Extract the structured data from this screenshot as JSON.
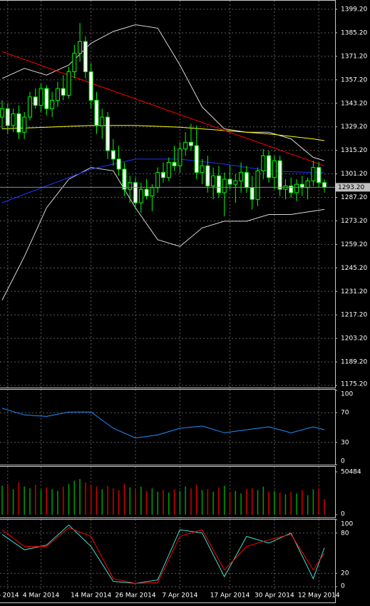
{
  "chart_data": [
    {
      "type": "candlestick",
      "categories": [
        null,
        "b 2014",
        null,
        null,
        null,
        null,
        null,
        "4 Mar 2014",
        null,
        null,
        null,
        null,
        null,
        null,
        null,
        null,
        "14 Mar 2014",
        null,
        null,
        null,
        null,
        null,
        null,
        null,
        "26 Mar 2014",
        null,
        null,
        null,
        null,
        null,
        null,
        null,
        "7 Apr 2014",
        null,
        null,
        null,
        null,
        null,
        null,
        null,
        null,
        "17 Apr 2014",
        null,
        null,
        null,
        null,
        null,
        null,
        null,
        "30 Apr 2014",
        null,
        null,
        null,
        null,
        null,
        null,
        null,
        "12 May 2014",
        null
      ],
      "open": [
        1335,
        1340,
        1330,
        1337,
        1326,
        1335,
        1347,
        1342,
        1352,
        1340,
        1345,
        1352,
        1348,
        1362,
        1373,
        1380,
        1362,
        1345,
        1330,
        1335,
        1315,
        1310,
        1304,
        1292,
        1296,
        1284,
        1292,
        1288,
        1293,
        1302,
        1299,
        1308,
        1306,
        1316,
        1320,
        1318,
        1302,
        1306,
        1294,
        1300,
        1290,
        1298,
        1295,
        1297,
        1302,
        1293,
        1286,
        1303,
        1312,
        1299,
        1309,
        1292,
        1294,
        1290,
        1295,
        1293,
        1297,
        1305,
        1296
      ],
      "high": [
        1345,
        1343,
        1340,
        1342,
        1338,
        1350,
        1352,
        1355,
        1354,
        1350,
        1356,
        1360,
        1365,
        1378,
        1391,
        1383,
        1367,
        1350,
        1340,
        1338,
        1322,
        1318,
        1308,
        1300,
        1299,
        1296,
        1298,
        1295,
        1305,
        1308,
        1311,
        1318,
        1320,
        1326,
        1331,
        1330,
        1310,
        1312,
        1305,
        1306,
        1302,
        1306,
        1301,
        1308,
        1306,
        1300,
        1305,
        1316,
        1315,
        1312,
        1312,
        1298,
        1299,
        1298,
        1300,
        1299,
        1309,
        1308,
        1298
      ],
      "low": [
        1328,
        1325,
        1326,
        1322,
        1322,
        1333,
        1340,
        1338,
        1336,
        1335,
        1341,
        1345,
        1346,
        1358,
        1368,
        1358,
        1340,
        1325,
        1322,
        1310,
        1306,
        1300,
        1288,
        1284,
        1280,
        1278,
        1286,
        1279,
        1290,
        1296,
        1297,
        1303,
        1302,
        1312,
        1315,
        1298,
        1295,
        1290,
        1286,
        1287,
        1276,
        1292,
        1284,
        1290,
        1290,
        1280,
        1282,
        1298,
        1296,
        1292,
        1288,
        1286,
        1287,
        1285,
        1288,
        1286,
        1294,
        1293,
        1290
      ],
      "close": [
        1340,
        1330,
        1337,
        1326,
        1335,
        1347,
        1342,
        1352,
        1340,
        1345,
        1352,
        1348,
        1362,
        1373,
        1380,
        1362,
        1345,
        1330,
        1335,
        1315,
        1310,
        1304,
        1292,
        1296,
        1284,
        1292,
        1288,
        1293,
        1302,
        1299,
        1308,
        1306,
        1316,
        1320,
        1318,
        1302,
        1306,
        1294,
        1300,
        1290,
        1298,
        1295,
        1297,
        1302,
        1293,
        1286,
        1303,
        1312,
        1299,
        1309,
        1292,
        1294,
        1290,
        1295,
        1293,
        1297,
        1305,
        1296,
        1293.2
      ],
      "bull_fill": "#000000",
      "bear_fill": "#ffffff",
      "outline": "#00ff00",
      "ylim": [
        1175.2,
        1399.2
      ],
      "yticks": [
        {
          "value": 1175.2,
          "label": "1175.20"
        },
        {
          "value": 1189.2,
          "label": "1189.20"
        },
        {
          "value": 1203.2,
          "label": "1203.20"
        },
        {
          "value": 1217.2,
          "label": "1217.20"
        },
        {
          "value": 1231.2,
          "label": "1231.20"
        },
        {
          "value": 1245.2,
          "label": "1245.20"
        },
        {
          "value": 1259.2,
          "label": "1259.20"
        },
        {
          "value": 1273.2,
          "label": "1273.20"
        },
        {
          "value": 1287.2,
          "label": "1287.20"
        },
        {
          "value": 1301.2,
          "label": "1301.20"
        },
        {
          "value": 1315.2,
          "label": "1315.20"
        },
        {
          "value": 1329.2,
          "label": "1329.20"
        },
        {
          "value": 1343.2,
          "label": "1343.20"
        },
        {
          "value": 1357.2,
          "label": "1357.20"
        },
        {
          "value": 1371.2,
          "label": "1371.20"
        },
        {
          "value": 1385.2,
          "label": "1385.20"
        },
        {
          "value": 1399.2,
          "label": "1399.20"
        }
      ],
      "grid": true,
      "last_price": {
        "value": 1293.2,
        "label": "1293.20"
      },
      "overlays": [
        {
          "color": "#d8d8d8",
          "x": [
            0,
            4,
            8,
            12,
            16,
            20,
            24,
            28,
            32,
            36,
            40,
            44,
            48,
            52,
            56,
            58
          ],
          "values": [
            1358,
            1364,
            1360,
            1366,
            1379,
            1386,
            1390,
            1388,
            1366,
            1341,
            1328,
            1326,
            1326,
            1322,
            1311,
            1309
          ]
        },
        {
          "color": "#d8d8d8",
          "x": [
            0,
            4,
            8,
            12,
            16,
            20,
            24,
            28,
            32,
            36,
            40,
            44,
            48,
            52,
            56,
            58
          ],
          "values": [
            1226,
            1252,
            1281,
            1298,
            1305,
            1303,
            1281,
            1262,
            1258,
            1269,
            1273,
            1273,
            1277,
            1277,
            1279,
            1280
          ]
        },
        {
          "color": "#ffff00",
          "x": [
            0,
            8,
            16,
            24,
            32,
            40,
            48,
            56,
            58
          ],
          "values": [
            1328,
            1329,
            1330,
            1330,
            1329,
            1327,
            1325,
            1322,
            1321
          ]
        },
        {
          "color": "#2233ff",
          "x": [
            0,
            8,
            16,
            24,
            32,
            40,
            48,
            56,
            58
          ],
          "values": [
            1284,
            1294,
            1304,
            1310,
            1310,
            1307,
            1303,
            1302,
            1302
          ]
        },
        {
          "color": "#ff0000",
          "x": [
            0,
            58
          ],
          "values": [
            1374,
            1306
          ]
        }
      ]
    },
    {
      "type": "line",
      "ylim": [
        0,
        100
      ],
      "yticks": [
        0,
        30,
        70,
        100
      ],
      "grid": true,
      "series": [
        {
          "color": "#1e90ff",
          "x": [
            0,
            4,
            8,
            12,
            16,
            20,
            24,
            28,
            32,
            36,
            40,
            44,
            48,
            52,
            56,
            58
          ],
          "values": [
            76,
            67,
            65,
            71,
            71,
            49,
            36,
            40,
            49,
            52,
            43,
            47,
            51,
            43,
            51,
            47
          ]
        }
      ]
    },
    {
      "type": "bar",
      "ylim": [
        0,
        50484
      ],
      "yticks": [
        0,
        50484
      ],
      "grid": false,
      "up_color": "#00a000",
      "down_color": "#d00000",
      "values": [
        34000,
        36000,
        30000,
        38000,
        33000,
        31000,
        35000,
        29000,
        32000,
        30000,
        28000,
        33000,
        36000,
        40000,
        42000,
        38000,
        35000,
        33000,
        30000,
        34000,
        31000,
        29000,
        36000,
        32000,
        30000,
        33000,
        28000,
        31000,
        27000,
        29000,
        26000,
        30000,
        28000,
        33000,
        31000,
        35000,
        29000,
        30000,
        27000,
        32000,
        34000,
        26000,
        28000,
        25000,
        30000,
        31000,
        29000,
        33000,
        27000,
        28000,
        26000,
        24000,
        27000,
        25000,
        29000,
        23000,
        30000,
        31000,
        18000
      ]
    },
    {
      "type": "line",
      "ylim": [
        0,
        100
      ],
      "yticks": [
        0,
        20,
        80,
        100
      ],
      "grid": true,
      "series": [
        {
          "color": "#40e0d0",
          "x": [
            0,
            4,
            8,
            12,
            16,
            20,
            24,
            28,
            32,
            36,
            40,
            44,
            48,
            52,
            56,
            58
          ],
          "values": [
            78,
            55,
            62,
            92,
            60,
            8,
            5,
            10,
            85,
            80,
            15,
            75,
            65,
            80,
            12,
            58
          ]
        },
        {
          "color": "#ff0000",
          "x": [
            0,
            4,
            8,
            12,
            16,
            20,
            24,
            28,
            32,
            36,
            40,
            44,
            48,
            52,
            56,
            58
          ],
          "values": [
            85,
            60,
            60,
            88,
            75,
            12,
            5,
            6,
            75,
            85,
            25,
            60,
            70,
            78,
            25,
            50
          ]
        }
      ]
    }
  ]
}
